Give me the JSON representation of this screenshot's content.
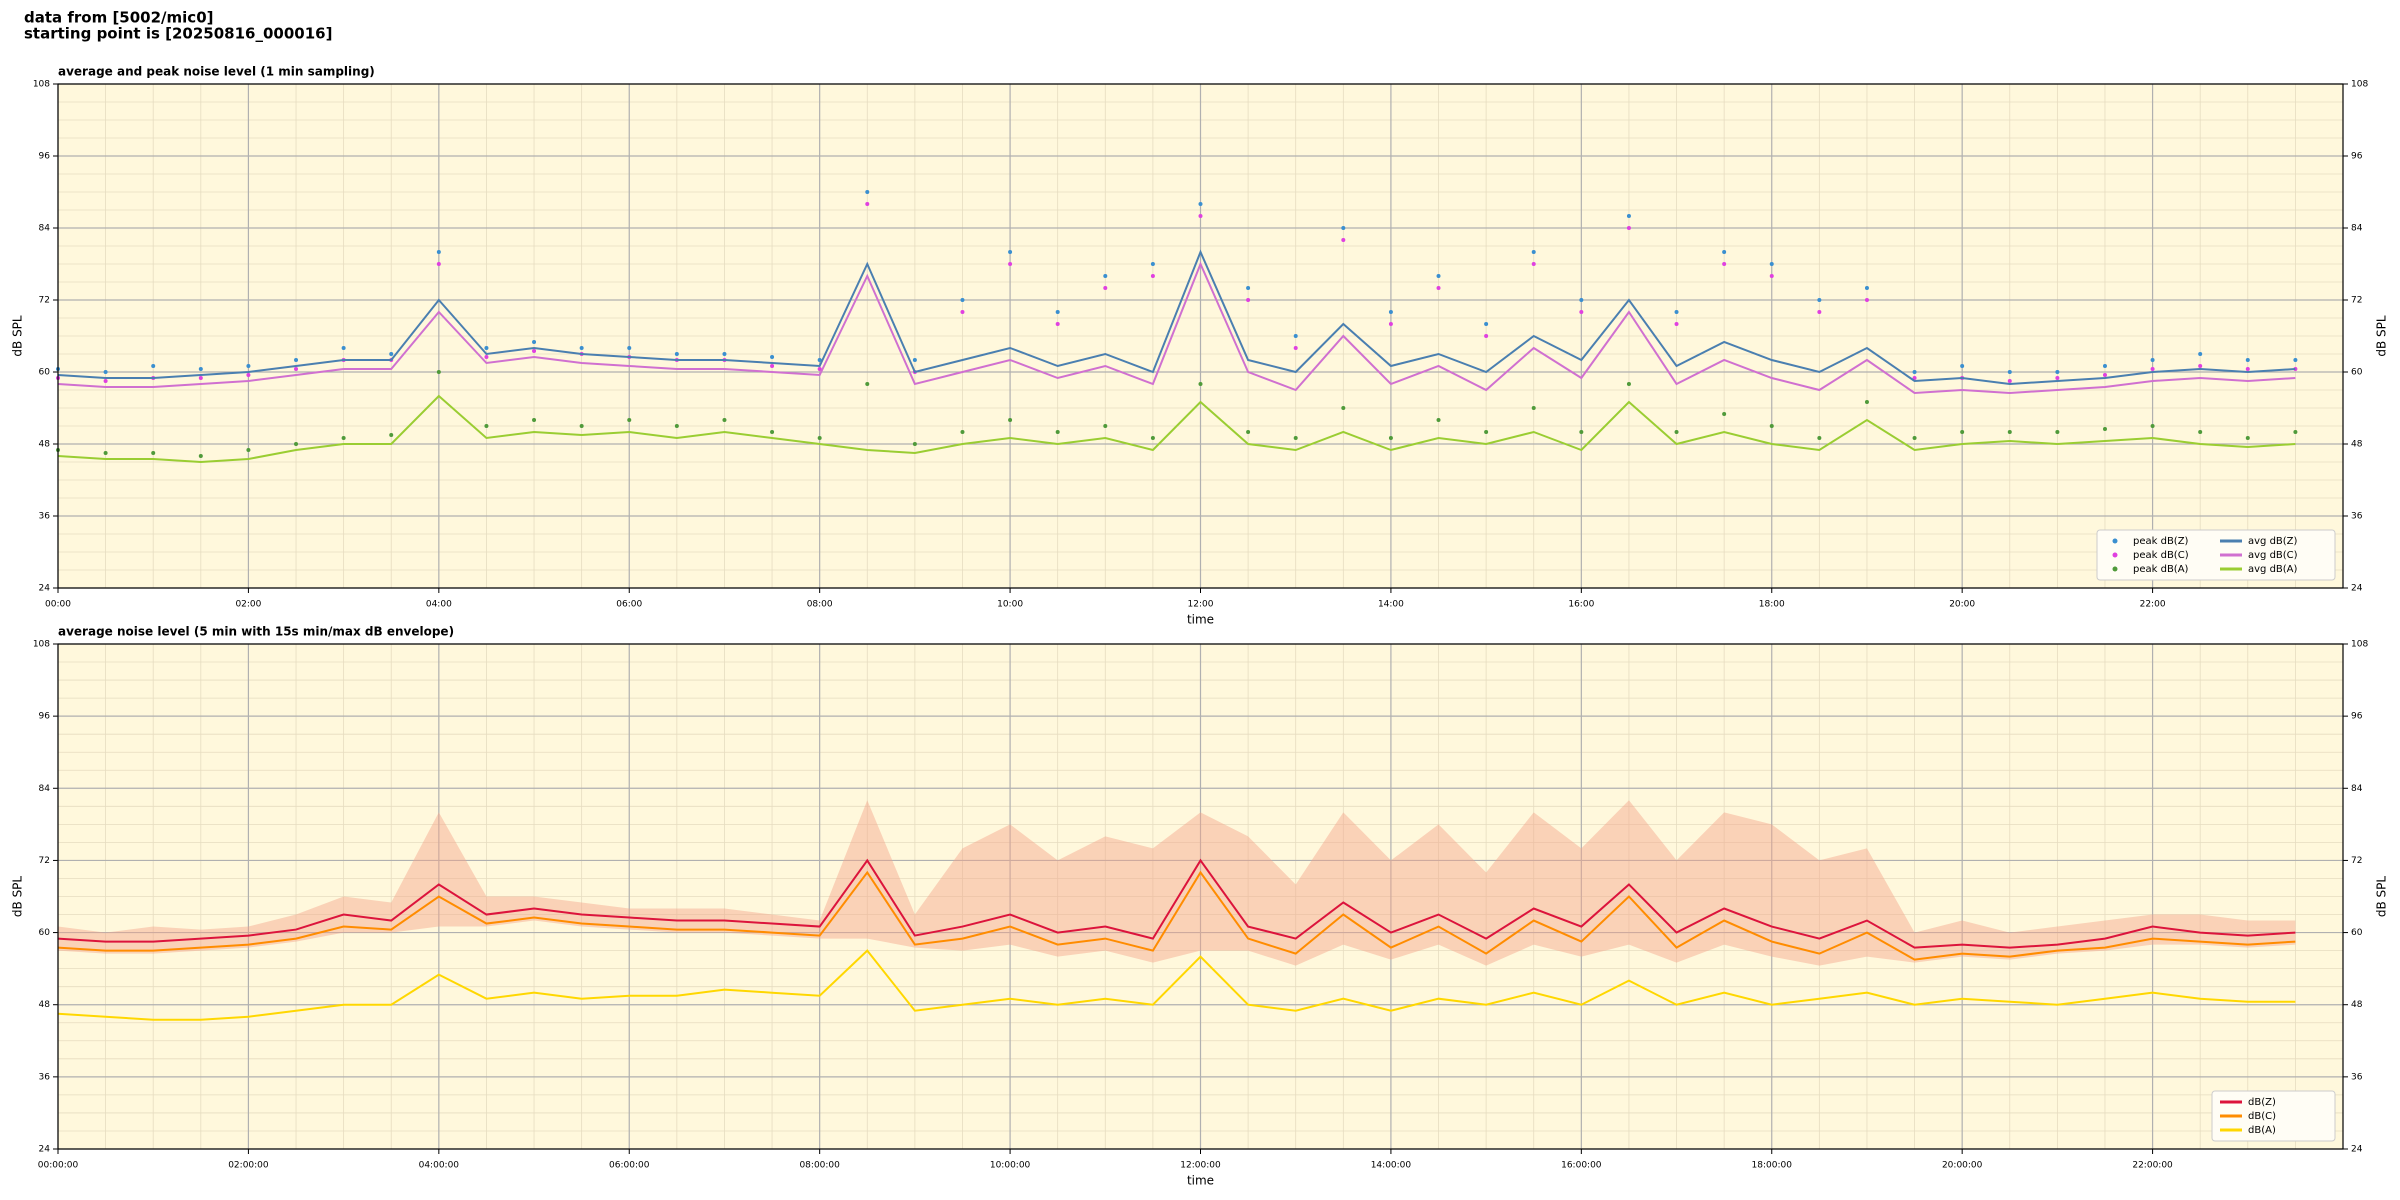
{
  "header": {
    "lines": [
      "data from [5002/mic0]",
      "starting point is [20250816_000016]"
    ]
  },
  "chart_data": [
    {
      "type": "line",
      "title": "average and peak noise level (1 min sampling)",
      "x_label": "time",
      "y_label": "dB SPL",
      "x": [
        0,
        30,
        60,
        90,
        120,
        150,
        180,
        210,
        240,
        270,
        300,
        330,
        360,
        390,
        420,
        450,
        480,
        510,
        540,
        570,
        600,
        630,
        660,
        690,
        720,
        750,
        780,
        810,
        840,
        870,
        900,
        930,
        960,
        990,
        1020,
        1050,
        1080,
        1110,
        1140,
        1170,
        1200,
        1230,
        1260,
        1290,
        1320,
        1350,
        1380,
        1410
      ],
      "xlim": [
        0,
        1440
      ],
      "xticks": [
        {
          "value": 0,
          "label": "00:00"
        },
        {
          "value": 120,
          "label": "02:00"
        },
        {
          "value": 240,
          "label": "04:00"
        },
        {
          "value": 360,
          "label": "06:00"
        },
        {
          "value": 480,
          "label": "08:00"
        },
        {
          "value": 600,
          "label": "10:00"
        },
        {
          "value": 720,
          "label": "12:00"
        },
        {
          "value": 840,
          "label": "14:00"
        },
        {
          "value": 960,
          "label": "16:00"
        },
        {
          "value": 1080,
          "label": "18:00"
        },
        {
          "value": 1200,
          "label": "20:00"
        },
        {
          "value": 1320,
          "label": "22:00"
        }
      ],
      "ylim": [
        24,
        108
      ],
      "yticks": [
        24,
        36,
        48,
        60,
        72,
        84,
        96,
        108
      ],
      "grid": true,
      "minor_grid": true,
      "background": "#fff8dc",
      "legend": "lower right",
      "legend_columns": 2,
      "series": [
        {
          "name": "peak dB(Z)",
          "kind": "scatter",
          "color": "#3a8fd0",
          "values": [
            60.5,
            60,
            61,
            60.5,
            61,
            62,
            64,
            63,
            80,
            64,
            65,
            64,
            64,
            63,
            63,
            62.5,
            62,
            90,
            62,
            72,
            80,
            70,
            76,
            78,
            88,
            74,
            66,
            84,
            70,
            76,
            68,
            80,
            72,
            86,
            70,
            80,
            78,
            72,
            74,
            60,
            61,
            60,
            60,
            61,
            62,
            63,
            62,
            62
          ]
        },
        {
          "name": "peak dB(C)",
          "kind": "scatter",
          "color": "#e040e0",
          "values": [
            59,
            58.5,
            59,
            59,
            59.5,
            60.5,
            62,
            62,
            78,
            62.5,
            63.5,
            63,
            62.5,
            62,
            62,
            61,
            60.5,
            88,
            60,
            70,
            78,
            68,
            74,
            76,
            86,
            72,
            64,
            82,
            68,
            74,
            66,
            78,
            70,
            84,
            68,
            78,
            76,
            70,
            72,
            59,
            59,
            58.5,
            59,
            59.5,
            60.5,
            61,
            60.5,
            60.5
          ]
        },
        {
          "name": "peak dB(A)",
          "kind": "scatter",
          "color": "#4f9a3a",
          "values": [
            47,
            46.5,
            46.5,
            46,
            47,
            48,
            49,
            49.5,
            60,
            51,
            52,
            51,
            52,
            51,
            52,
            50,
            49,
            58,
            48,
            50,
            52,
            50,
            51,
            49,
            58,
            50,
            49,
            54,
            49,
            52,
            50,
            54,
            50,
            58,
            50,
            53,
            51,
            49,
            55,
            49,
            50,
            50,
            50,
            50.5,
            51,
            50,
            49,
            50
          ]
        },
        {
          "name": "avg dB(Z)",
          "kind": "line",
          "color": "#4a7fb0",
          "values": [
            59.5,
            59,
            59,
            59.5,
            60,
            61,
            62,
            62,
            72,
            63,
            64,
            63,
            62.5,
            62,
            62,
            61.5,
            61,
            78,
            60,
            62,
            64,
            61,
            63,
            60,
            80,
            62,
            60,
            68,
            61,
            63,
            60,
            66,
            62,
            72,
            61,
            65,
            62,
            60,
            64,
            58.5,
            59,
            58,
            58.5,
            59,
            60,
            60.5,
            60,
            60.5
          ]
        },
        {
          "name": "avg dB(C)",
          "kind": "line",
          "color": "#d070d0",
          "values": [
            58,
            57.5,
            57.5,
            58,
            58.5,
            59.5,
            60.5,
            60.5,
            70,
            61.5,
            62.5,
            61.5,
            61,
            60.5,
            60.5,
            60,
            59.5,
            76,
            58,
            60,
            62,
            59,
            61,
            58,
            78,
            60,
            57,
            66,
            58,
            61,
            57,
            64,
            59,
            70,
            58,
            62,
            59,
            57,
            62,
            56.5,
            57,
            56.5,
            57,
            57.5,
            58.5,
            59,
            58.5,
            59
          ]
        },
        {
          "name": "avg dB(A)",
          "kind": "line",
          "color": "#9acd32",
          "values": [
            46,
            45.5,
            45.5,
            45,
            45.5,
            47,
            48,
            48,
            56,
            49,
            50,
            49.5,
            50,
            49,
            50,
            49,
            48,
            47,
            46.5,
            48,
            49,
            48,
            49,
            47,
            55,
            48,
            47,
            50,
            47,
            49,
            48,
            50,
            47,
            55,
            48,
            50,
            48,
            47,
            52,
            47,
            48,
            48.5,
            48,
            48.5,
            49,
            48,
            47.5,
            48
          ]
        }
      ]
    },
    {
      "type": "line",
      "title": "average noise level (5 min with 15s min/max dB envelope)",
      "x_label": "time",
      "y_label": "dB SPL",
      "x": [
        0,
        30,
        60,
        90,
        120,
        150,
        180,
        210,
        240,
        270,
        300,
        330,
        360,
        390,
        420,
        450,
        480,
        510,
        540,
        570,
        600,
        630,
        660,
        690,
        720,
        750,
        780,
        810,
        840,
        870,
        900,
        930,
        960,
        990,
        1020,
        1050,
        1080,
        1110,
        1140,
        1170,
        1200,
        1230,
        1260,
        1290,
        1320,
        1350,
        1380,
        1410
      ],
      "xlim": [
        0,
        1440
      ],
      "xticks": [
        {
          "value": 0,
          "label": "00:00:00"
        },
        {
          "value": 120,
          "label": "02:00:00"
        },
        {
          "value": 240,
          "label": "04:00:00"
        },
        {
          "value": 360,
          "label": "06:00:00"
        },
        {
          "value": 480,
          "label": "08:00:00"
        },
        {
          "value": 600,
          "label": "10:00:00"
        },
        {
          "value": 720,
          "label": "12:00:00"
        },
        {
          "value": 840,
          "label": "14:00:00"
        },
        {
          "value": 960,
          "label": "16:00:00"
        },
        {
          "value": 1080,
          "label": "18:00:00"
        },
        {
          "value": 1200,
          "label": "20:00:00"
        },
        {
          "value": 1320,
          "label": "22:00:00"
        }
      ],
      "ylim": [
        24,
        108
      ],
      "yticks": [
        24,
        36,
        48,
        60,
        72,
        84,
        96,
        108
      ],
      "grid": true,
      "minor_grid": true,
      "background": "#fff8dc",
      "legend": "lower right",
      "legend_columns": 1,
      "envelope": {
        "color": "#f4a58a",
        "lower": [
          57,
          56.5,
          56.5,
          57,
          57.5,
          58.5,
          60,
          60,
          61,
          61,
          62,
          61,
          60.5,
          60,
          60,
          59.5,
          59,
          59,
          57.5,
          57,
          58,
          56,
          57,
          55,
          57,
          57,
          54.5,
          58,
          55.5,
          58,
          54.5,
          58,
          56,
          58,
          55,
          58,
          56,
          54.5,
          56,
          55,
          56,
          55.5,
          56.5,
          57,
          58,
          58,
          57.5,
          58
        ],
        "upper": [
          61,
          60,
          61,
          60.5,
          61,
          63,
          66,
          65,
          80,
          66,
          66,
          65,
          64,
          64,
          64,
          63,
          62,
          82,
          63,
          74,
          78,
          72,
          76,
          74,
          80,
          76,
          68,
          80,
          72,
          78,
          70,
          80,
          74,
          82,
          72,
          80,
          78,
          72,
          74,
          60,
          62,
          60,
          61,
          62,
          63,
          63,
          62,
          62
        ]
      },
      "series": [
        {
          "name": "dB(Z)",
          "kind": "line",
          "color": "#dc143c",
          "values": [
            59,
            58.5,
            58.5,
            59,
            59.5,
            60.5,
            63,
            62,
            68,
            63,
            64,
            63,
            62.5,
            62,
            62,
            61.5,
            61,
            72,
            59.5,
            61,
            63,
            60,
            61,
            59,
            72,
            61,
            59,
            65,
            60,
            63,
            59,
            64,
            61,
            68,
            60,
            64,
            61,
            59,
            62,
            57.5,
            58,
            57.5,
            58,
            59,
            61,
            60,
            59.5,
            60
          ]
        },
        {
          "name": "dB(C)",
          "kind": "line",
          "color": "#ff8c00",
          "values": [
            57.5,
            57,
            57,
            57.5,
            58,
            59,
            61,
            60.5,
            66,
            61.5,
            62.5,
            61.5,
            61,
            60.5,
            60.5,
            60,
            59.5,
            70,
            58,
            59,
            61,
            58,
            59,
            57,
            70,
            59,
            56.5,
            63,
            57.5,
            61,
            56.5,
            62,
            58.5,
            66,
            57.5,
            62,
            58.5,
            56.5,
            60,
            55.5,
            56.5,
            56,
            57,
            57.5,
            59,
            58.5,
            58,
            58.5
          ]
        },
        {
          "name": "dB(A)",
          "kind": "line",
          "color": "#ffd700",
          "values": [
            46.5,
            46,
            45.5,
            45.5,
            46,
            47,
            48,
            48,
            53,
            49,
            50,
            49,
            49.5,
            49.5,
            50.5,
            50,
            49.5,
            57,
            47,
            48,
            49,
            48,
            49,
            48,
            56,
            48,
            47,
            49,
            47,
            49,
            48,
            50,
            48,
            52,
            48,
            50,
            48,
            49,
            50,
            48,
            49,
            48.5,
            48,
            49,
            50,
            49,
            48.5,
            48.5
          ]
        }
      ]
    }
  ]
}
